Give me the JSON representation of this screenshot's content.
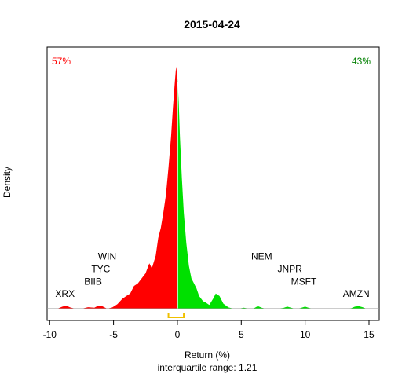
{
  "chart_data": {
    "type": "area",
    "title": "2015-04-24",
    "xlabel": "Return (%)",
    "subtitle": "interquartile range: 1.21",
    "ylabel": "Density",
    "xlim": [
      -10.2,
      15.8
    ],
    "ylim": [
      0,
      1.0
    ],
    "x_ticks": [
      -10,
      -5,
      0,
      5,
      10,
      15
    ],
    "x_tick_labels": [
      "-10",
      "-5",
      "0",
      "5",
      "10",
      "15"
    ],
    "negative_share": "57%",
    "positive_share": "43%",
    "interquartile_range": [
      -0.7,
      0.5
    ],
    "density": {
      "x": [
        -9.8,
        -9.4,
        -9.0,
        -8.7,
        -8.4,
        -8.0,
        -7.5,
        -7.0,
        -6.5,
        -6.2,
        -5.9,
        -5.5,
        -5.1,
        -4.7,
        -4.3,
        -4.0,
        -3.7,
        -3.4,
        -3.1,
        -2.8,
        -2.5,
        -2.2,
        -2.0,
        -1.7,
        -1.5,
        -1.3,
        -1.1,
        -0.9,
        -0.7,
        -0.5,
        -0.35,
        -0.2,
        -0.1,
        0.0,
        0.1,
        0.2,
        0.35,
        0.5,
        0.7,
        0.9,
        1.1,
        1.3,
        1.5,
        1.7,
        2.0,
        2.2,
        2.5,
        2.8,
        3.0,
        3.3,
        3.6,
        4.0,
        4.4,
        4.8,
        5.2,
        5.6,
        6.0,
        6.3,
        6.6,
        6.9,
        7.3,
        7.8,
        8.3,
        8.6,
        8.9,
        9.2,
        9.6,
        10.0,
        10.3,
        10.6,
        11.0,
        11.6,
        12.3,
        13.0,
        13.6,
        13.9,
        14.2,
        14.5,
        14.8,
        15.2
      ],
      "y": [
        0.0,
        0.0,
        0.008,
        0.012,
        0.005,
        0.0,
        0.0,
        0.006,
        0.004,
        0.012,
        0.01,
        0.0,
        0.005,
        0.018,
        0.04,
        0.05,
        0.06,
        0.09,
        0.1,
        0.12,
        0.14,
        0.18,
        0.16,
        0.21,
        0.28,
        0.32,
        0.38,
        0.45,
        0.56,
        0.68,
        0.8,
        0.9,
        0.96,
        0.92,
        0.82,
        0.68,
        0.52,
        0.38,
        0.26,
        0.17,
        0.12,
        0.1,
        0.08,
        0.05,
        0.03,
        0.025,
        0.015,
        0.04,
        0.06,
        0.05,
        0.02,
        0.005,
        0.0,
        0.0,
        0.004,
        0.0,
        0.002,
        0.01,
        0.004,
        0.0,
        0.0,
        0.0,
        0.003,
        0.008,
        0.004,
        0.0,
        0.002,
        0.008,
        0.003,
        0.0,
        0.0,
        0.0,
        0.0,
        0.0,
        0.002,
        0.008,
        0.01,
        0.006,
        0.0,
        0.0
      ]
    },
    "series": [
      {
        "name": "",
        "color": "#ff0000",
        "range": "x < 0"
      },
      {
        "name": "",
        "color": "#00e000",
        "range": "x > 0"
      }
    ],
    "annotations": [
      {
        "text": "XRX",
        "x": -8.8,
        "y": 0.046
      },
      {
        "text": "BIIB",
        "x": -6.6,
        "y": 0.095
      },
      {
        "text": "TYC",
        "x": -6.0,
        "y": 0.145
      },
      {
        "text": "WIN",
        "x": -5.5,
        "y": 0.195
      },
      {
        "text": "NEM",
        "x": 6.6,
        "y": 0.195
      },
      {
        "text": "JNPR",
        "x": 8.8,
        "y": 0.145
      },
      {
        "text": "MSFT",
        "x": 9.9,
        "y": 0.095
      },
      {
        "text": "AMZN",
        "x": 14.0,
        "y": 0.046
      }
    ],
    "colors": {
      "negative": "#ff0000",
      "positive": "#00e000",
      "iqr": "#f0c000",
      "zero_line": "#ffffff",
      "axis": "#000000"
    },
    "grid": false,
    "legend": "none"
  }
}
